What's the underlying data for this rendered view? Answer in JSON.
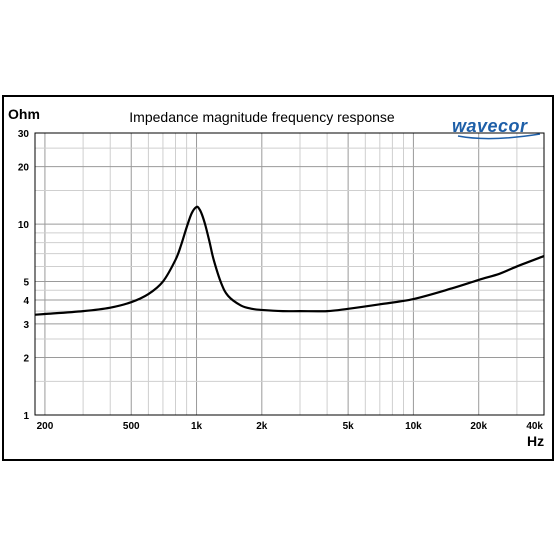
{
  "logo": {
    "text": "wavecor",
    "color": "#1e5fa8"
  },
  "chart_data": {
    "type": "line",
    "title": "Impedance magnitude frequency response",
    "ylabel": "Ohm",
    "xlabel": "Hz",
    "x_scale": "log",
    "y_scale": "log",
    "xlim": [
      180,
      40000
    ],
    "ylim": [
      1,
      30
    ],
    "grid": true,
    "x_ticks": [
      {
        "value": 200,
        "label": "200"
      },
      {
        "value": 500,
        "label": "500"
      },
      {
        "value": 1000,
        "label": "1k"
      },
      {
        "value": 2000,
        "label": "2k"
      },
      {
        "value": 5000,
        "label": "5k"
      },
      {
        "value": 10000,
        "label": "10k"
      },
      {
        "value": 20000,
        "label": "20k"
      },
      {
        "value": 40000,
        "label": "40k"
      }
    ],
    "y_ticks": [
      {
        "value": 1,
        "label": "1"
      },
      {
        "value": 2,
        "label": "2"
      },
      {
        "value": 3,
        "label": "3"
      },
      {
        "value": 4,
        "label": "4"
      },
      {
        "value": 5,
        "label": "5"
      },
      {
        "value": 10,
        "label": "10"
      },
      {
        "value": 20,
        "label": "20"
      },
      {
        "value": 30,
        "label": "30"
      }
    ],
    "series": [
      {
        "color": "#000000",
        "x": [
          180,
          200,
          300,
          400,
          500,
          600,
          700,
          800,
          850,
          900,
          950,
          1000,
          1030,
          1060,
          1100,
          1150,
          1200,
          1300,
          1400,
          1600,
          1800,
          2000,
          2500,
          3000,
          4000,
          5000,
          7000,
          10000,
          15000,
          20000,
          25000,
          30000,
          40000
        ],
        "y": [
          3.35,
          3.38,
          3.5,
          3.65,
          3.9,
          4.3,
          5.0,
          6.5,
          7.8,
          9.6,
          11.4,
          12.3,
          12.0,
          11.2,
          9.8,
          8.0,
          6.5,
          4.9,
          4.2,
          3.75,
          3.6,
          3.55,
          3.5,
          3.5,
          3.5,
          3.6,
          3.8,
          4.05,
          4.6,
          5.1,
          5.5,
          6.0,
          6.8
        ]
      }
    ]
  }
}
